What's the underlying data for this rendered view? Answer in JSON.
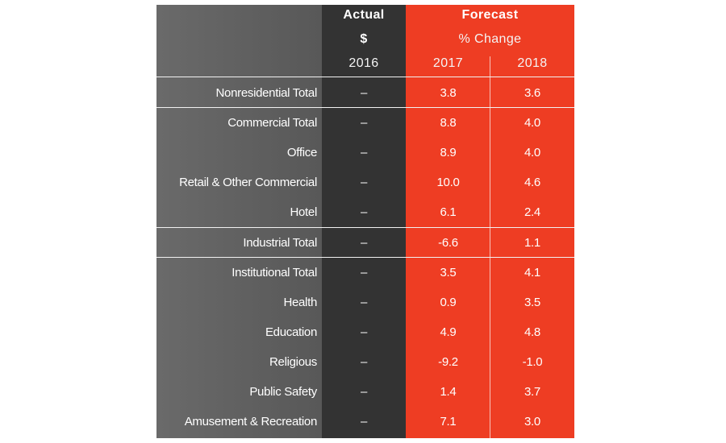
{
  "chart_data": {
    "type": "table",
    "header": {
      "actual_label": "Actual",
      "actual_unit": "$",
      "actual_year": "2016",
      "forecast_label": "Forecast",
      "forecast_unit": "% Change",
      "forecast_years": [
        "2017",
        "2018"
      ]
    },
    "rows": [
      {
        "label": "Nonresidential Total",
        "actual": "–",
        "y2017": "3.8",
        "y2018": "3.6"
      },
      {
        "label": "Commercial Total",
        "actual": "–",
        "y2017": "8.8",
        "y2018": "4.0"
      },
      {
        "label": "Office",
        "actual": "–",
        "y2017": "8.9",
        "y2018": "4.0"
      },
      {
        "label": "Retail & Other Commercial",
        "actual": "–",
        "y2017": "10.0",
        "y2018": "4.6"
      },
      {
        "label": "Hotel",
        "actual": "–",
        "y2017": "6.1",
        "y2018": "2.4"
      },
      {
        "label": "Industrial Total",
        "actual": "–",
        "y2017": "-6.6",
        "y2018": "1.1"
      },
      {
        "label": "Institutional Total",
        "actual": "–",
        "y2017": "3.5",
        "y2018": "4.1"
      },
      {
        "label": "Health",
        "actual": "–",
        "y2017": "0.9",
        "y2018": "3.5"
      },
      {
        "label": "Education",
        "actual": "–",
        "y2017": "4.9",
        "y2018": "4.8"
      },
      {
        "label": "Religious",
        "actual": "–",
        "y2017": "-9.2",
        "y2018": "-1.0"
      },
      {
        "label": "Public Safety",
        "actual": "–",
        "y2017": "1.4",
        "y2018": "3.7"
      },
      {
        "label": "Amusement & Recreation",
        "actual": "–",
        "y2017": "7.1",
        "y2018": "3.0"
      }
    ],
    "colors": {
      "label_column": "#636363",
      "actual_column": "#333333",
      "forecast_column": "#ee3d23",
      "text": "#ffffff"
    }
  }
}
